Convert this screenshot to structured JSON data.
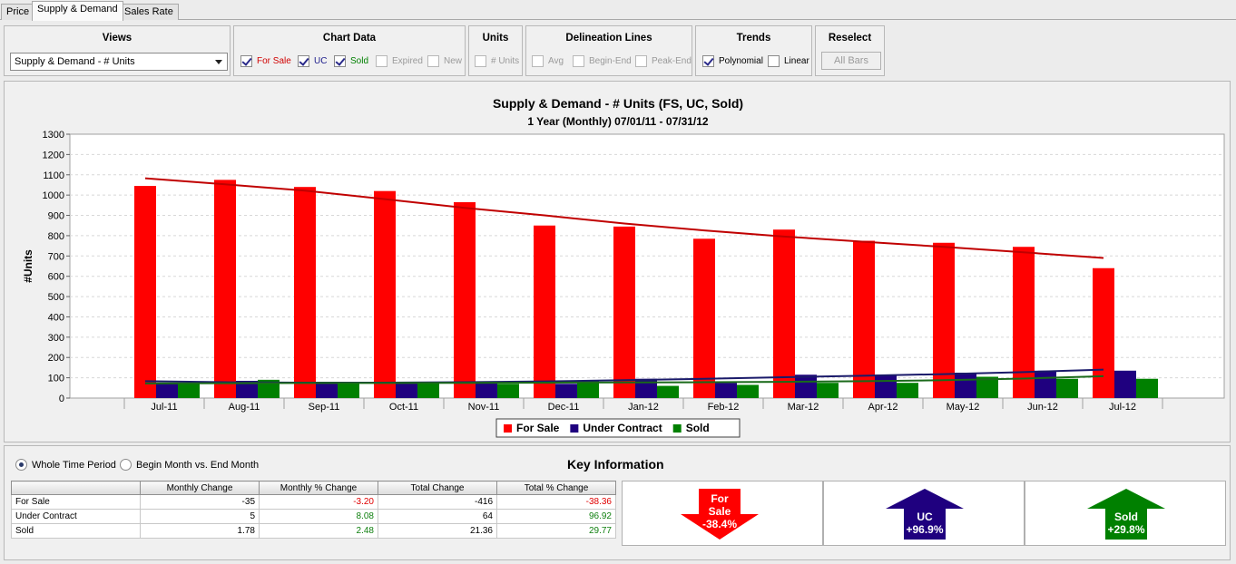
{
  "tabs": [
    {
      "label": "Price",
      "active": false
    },
    {
      "label": "Supply & Demand",
      "active": true
    },
    {
      "label": "Sales Rate",
      "active": false
    }
  ],
  "views": {
    "title": "Views",
    "selected": "Supply & Demand - # Units"
  },
  "chart_data_group": {
    "title": "Chart Data",
    "items": [
      {
        "label": "For Sale",
        "checked": true,
        "color": "#d00000"
      },
      {
        "label": "UC",
        "checked": true,
        "color": "#1a1a8a"
      },
      {
        "label": "Sold",
        "checked": true,
        "color": "#008000"
      },
      {
        "label": "Expired",
        "checked": false,
        "disabled": true
      },
      {
        "label": "New",
        "checked": false,
        "disabled": true
      }
    ]
  },
  "units_group": {
    "title": "Units",
    "items": [
      {
        "label": "# Units",
        "checked": false,
        "disabled": true
      }
    ]
  },
  "delineation_group": {
    "title": "Delineation Lines",
    "items": [
      {
        "label": "Avg",
        "checked": false,
        "disabled": true
      },
      {
        "label": "Begin-End",
        "checked": false,
        "disabled": true
      },
      {
        "label": "Peak-End",
        "checked": false,
        "disabled": true
      }
    ]
  },
  "trends_group": {
    "title": "Trends",
    "items": [
      {
        "label": "Polynomial",
        "checked": true
      },
      {
        "label": "Linear",
        "checked": false
      }
    ]
  },
  "reselect_group": {
    "title": "Reselect",
    "button": "All Bars"
  },
  "chart_data": {
    "type": "bar",
    "title": "Supply & Demand - # Units (FS, UC, Sold)",
    "subtitle": "1 Year (Monthly) 07/01/11 - 07/31/12",
    "ylabel": "#Units",
    "xlabel": "",
    "ylim": [
      0,
      1300
    ],
    "ystep": 100,
    "grid": true,
    "legend": "bottom",
    "categories": [
      "Jul-11",
      "Aug-11",
      "Sep-11",
      "Oct-11",
      "Nov-11",
      "Dec-11",
      "Jan-12",
      "Feb-12",
      "Mar-12",
      "Apr-12",
      "May-12",
      "Jun-12",
      "Jul-12"
    ],
    "series": [
      {
        "name": "For Sale",
        "color": "#ff0000",
        "values": [
          1045,
          1075,
          1040,
          1020,
          965,
          850,
          845,
          785,
          830,
          775,
          765,
          745,
          640
        ]
      },
      {
        "name": "Under Contract",
        "color": "#1f007f",
        "values": [
          75,
          85,
          80,
          80,
          80,
          70,
          95,
          75,
          115,
          115,
          125,
          135,
          135
        ]
      },
      {
        "name": "Sold",
        "color": "#008000",
        "values": [
          70,
          90,
          75,
          80,
          70,
          85,
          60,
          65,
          75,
          75,
          105,
          95,
          95
        ]
      }
    ],
    "trendlines": [
      {
        "series": "For Sale",
        "color": "#c00000",
        "values": [
          1083,
          1053,
          1022,
          980,
          937,
          900,
          860,
          826,
          796,
          770,
          745,
          718,
          690
        ]
      },
      {
        "series": "Under Contract",
        "color": "#1a1a6a",
        "values": [
          83,
          78,
          76,
          76,
          78,
          82,
          88,
          95,
          103,
          110,
          118,
          128,
          140
        ]
      },
      {
        "series": "Sold",
        "color": "#1a6a1a",
        "values": [
          72,
          73,
          74,
          74,
          75,
          76,
          77,
          78,
          80,
          83,
          88,
          96,
          108
        ]
      }
    ]
  },
  "time_options": [
    {
      "label": "Whole Time Period",
      "selected": true
    },
    {
      "label": "Begin Month vs. End Month",
      "selected": false
    }
  ],
  "key_info": {
    "title": "Key Information",
    "columns": [
      "Monthly Change",
      "Monthly % Change",
      "Total Change",
      "Total % Change"
    ],
    "rows": [
      {
        "label": "For Sale",
        "monthly": "-35",
        "monthly_pct": "-3.20",
        "total": "-416",
        "total_pct": "-38.36"
      },
      {
        "label": "Under Contract",
        "monthly": "5",
        "monthly_pct": "8.08",
        "total": "64",
        "total_pct": "96.92"
      },
      {
        "label": "Sold",
        "monthly": "1.78",
        "monthly_pct": "2.48",
        "total": "21.36",
        "total_pct": "29.77"
      }
    ],
    "indicators": [
      {
        "name": "For Sale",
        "line1": "For",
        "line2": "Sale",
        "value": "-38.4%",
        "direction": "down",
        "color": "#ff0000"
      },
      {
        "name": "UC",
        "line1": "UC",
        "line2": "",
        "value": "+96.9%",
        "direction": "up",
        "color": "#1f007f"
      },
      {
        "name": "Sold",
        "line1": "Sold",
        "line2": "",
        "value": "+29.8%",
        "direction": "up",
        "color": "#008000"
      }
    ]
  }
}
